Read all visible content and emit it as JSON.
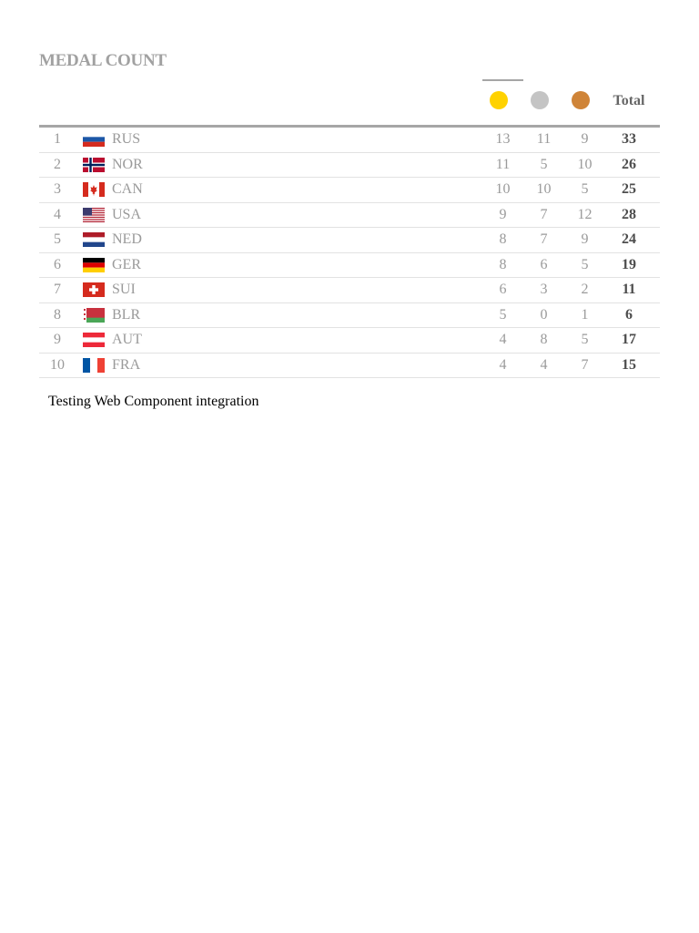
{
  "header": {
    "title": "MEDAL COUNT",
    "total_label": "Total"
  },
  "medal_colors": {
    "gold": "#ffd200",
    "silver": "#c4c4c4",
    "bronze": "#cf8438"
  },
  "columns": [
    "gold",
    "silver",
    "bronze",
    "Total"
  ],
  "rows": [
    {
      "rank": "1",
      "country": "RUS",
      "flag_icon": "russia-flag-icon",
      "gold": "13",
      "silver": "11",
      "bronze": "9",
      "total": "33"
    },
    {
      "rank": "2",
      "country": "NOR",
      "flag_icon": "norway-flag-icon",
      "gold": "11",
      "silver": "5",
      "bronze": "10",
      "total": "26"
    },
    {
      "rank": "3",
      "country": "CAN",
      "flag_icon": "canada-flag-icon",
      "gold": "10",
      "silver": "10",
      "bronze": "5",
      "total": "25"
    },
    {
      "rank": "4",
      "country": "USA",
      "flag_icon": "usa-flag-icon",
      "gold": "9",
      "silver": "7",
      "bronze": "12",
      "total": "28"
    },
    {
      "rank": "5",
      "country": "NED",
      "flag_icon": "netherlands-flag-icon",
      "gold": "8",
      "silver": "7",
      "bronze": "9",
      "total": "24"
    },
    {
      "rank": "6",
      "country": "GER",
      "flag_icon": "germany-flag-icon",
      "gold": "8",
      "silver": "6",
      "bronze": "5",
      "total": "19"
    },
    {
      "rank": "7",
      "country": "SUI",
      "flag_icon": "switzerland-flag-icon",
      "gold": "6",
      "silver": "3",
      "bronze": "2",
      "total": "11"
    },
    {
      "rank": "8",
      "country": "BLR",
      "flag_icon": "belarus-flag-icon",
      "gold": "5",
      "silver": "0",
      "bronze": "1",
      "total": "6"
    },
    {
      "rank": "9",
      "country": "AUT",
      "flag_icon": "austria-flag-icon",
      "gold": "4",
      "silver": "8",
      "bronze": "5",
      "total": "17"
    },
    {
      "rank": "10",
      "country": "FRA",
      "flag_icon": "france-flag-icon",
      "gold": "4",
      "silver": "4",
      "bronze": "7",
      "total": "15"
    }
  ],
  "footer": {
    "text": "Testing Web Component integration"
  }
}
